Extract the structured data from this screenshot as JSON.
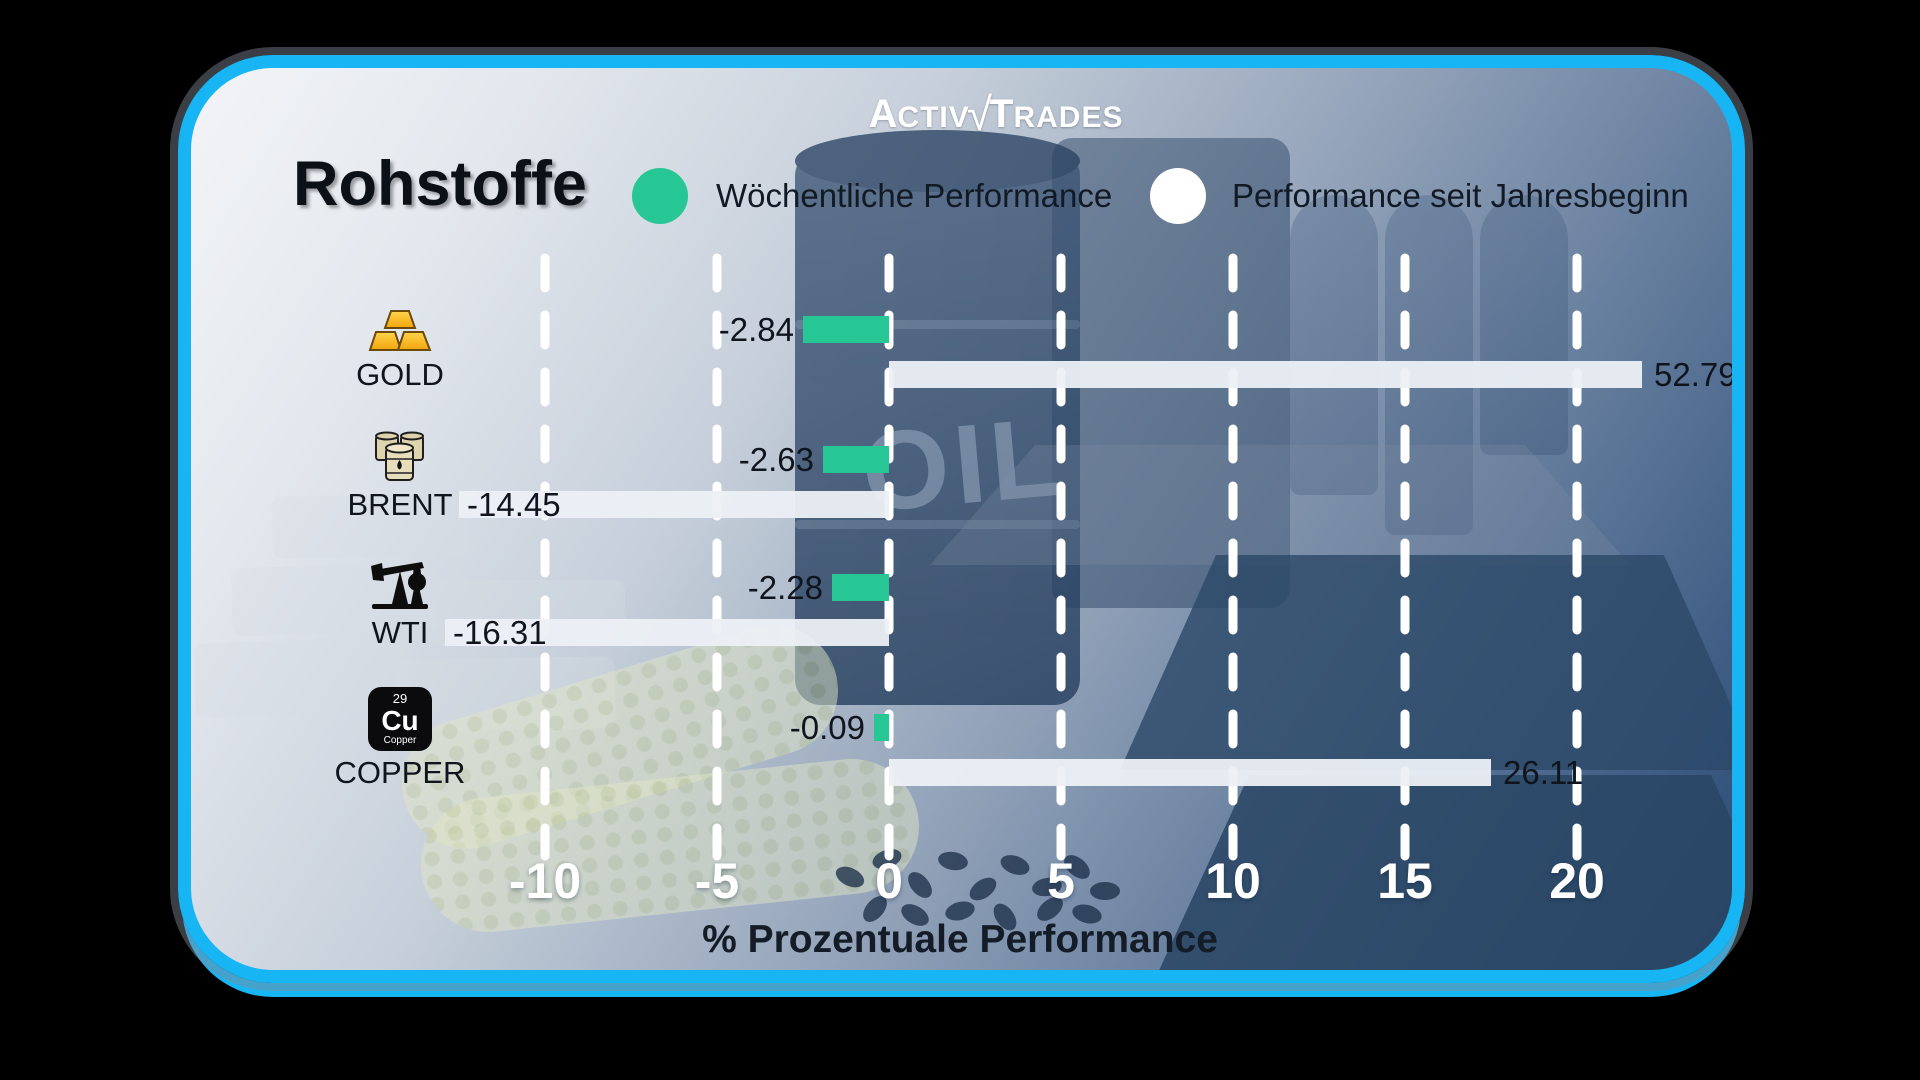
{
  "brand": {
    "logo": {
      "a1": "A",
      "a2": "CTIV",
      "check": "√",
      "t1": "T",
      "t2": "RADES"
    }
  },
  "header": {
    "title": "Rohstoffe"
  },
  "legend": {
    "weekly": {
      "label": "Wöchentliche Performance",
      "color": "#26c794"
    },
    "ytd": {
      "label": "Performance seit Jahresbeginn",
      "color": "#ffffff"
    }
  },
  "background": {
    "oil_text": "OIL"
  },
  "chart_data": {
    "type": "bar",
    "orientation": "horizontal",
    "title": "Rohstoffe",
    "xlabel": "% Prozentuale Performance",
    "ticks": [
      -10,
      -5,
      0,
      5,
      10,
      15,
      20
    ],
    "xlim": [
      -13,
      22.5
    ],
    "grid": "vertical-dashed-white",
    "legend_position": "top",
    "categories": [
      "GOLD",
      "BRENT",
      "WTI",
      "COPPER"
    ],
    "series": [
      {
        "name": "Wöchentliche Performance",
        "color": "#26c794",
        "values": [
          -2.84,
          -2.63,
          -2.28,
          -0.09
        ]
      },
      {
        "name": "Performance seit Jahresbeginn",
        "color": "#ecf0f5",
        "values": [
          52.79,
          -14.45,
          -16.31,
          26.11
        ]
      }
    ],
    "items": [
      {
        "category": "GOLD",
        "icon": "gold-bars-icon",
        "weekly": -2.84,
        "weekly_label": "-2.84",
        "ytd": 52.79,
        "ytd_label": "52.79",
        "bar_display_units": {
          "weekly": 2.5,
          "ytd": 21.9
        }
      },
      {
        "category": "BRENT",
        "icon": "oil-barrels-icon",
        "weekly": -2.63,
        "weekly_label": "-2.63",
        "ytd": -14.45,
        "ytd_label": "-14.45",
        "bar_display_units": {
          "weekly": 1.92,
          "ytd": 12.5
        }
      },
      {
        "category": "WTI",
        "icon": "oil-pumpjack-icon",
        "weekly": -2.28,
        "weekly_label": "-2.28",
        "ytd": -16.31,
        "ytd_label": "-16.31",
        "bar_display_units": {
          "weekly": 1.66,
          "ytd": 12.9
        }
      },
      {
        "category": "COPPER",
        "icon": "copper-element-icon",
        "weekly": -0.09,
        "weekly_label": "-0.09",
        "ytd": 26.11,
        "ytd_label": "26.11",
        "bar_display_units": {
          "weekly": 0.45,
          "ytd": 17.5
        }
      }
    ],
    "copper_element": {
      "number": "29",
      "symbol": "Cu",
      "name": "Copper"
    }
  }
}
